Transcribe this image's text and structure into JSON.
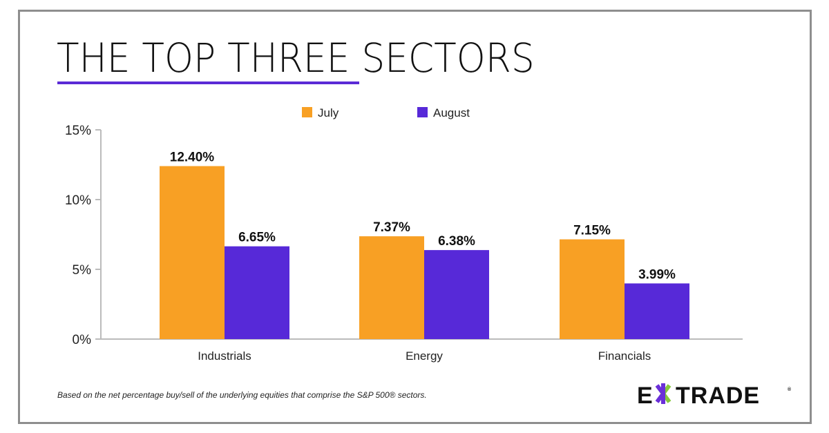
{
  "title": "THE TOP THREE SECTORS",
  "footnote": "Based on the net percentage buy/sell of the underlying equities that comprise the S&P 500® sectors.",
  "logo": "E*TRADE",
  "colors": {
    "accent": "#5b2bd6",
    "july": "#f8a024",
    "august": "#5729d8",
    "frame": "#8e8e8e"
  },
  "chart_data": {
    "type": "bar",
    "categories": [
      "Industrials",
      "Energy",
      "Financials"
    ],
    "series": [
      {
        "name": "July",
        "values": [
          12.4,
          7.37,
          7.15
        ],
        "labels": [
          "12.40%",
          "7.37%",
          "7.15%"
        ],
        "color": "#f8a024"
      },
      {
        "name": "August",
        "values": [
          6.65,
          6.38,
          3.99
        ],
        "labels": [
          "6.65%",
          "6.38%",
          "3.99%"
        ],
        "color": "#5729d8"
      }
    ],
    "ylim": [
      0,
      15
    ],
    "yticks": [
      0,
      5,
      10,
      15
    ],
    "ytick_labels": [
      "0%",
      "5%",
      "10%",
      "15%"
    ],
    "legend": "top-center",
    "grid": false
  }
}
